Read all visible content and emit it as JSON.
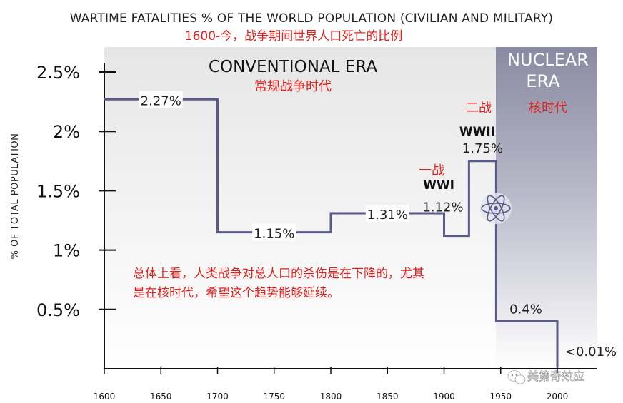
{
  "chart_data": {
    "type": "line",
    "title": "WARTIME FATALITIES % OF THE WORLD POPULATION (CIVILIAN AND MILITARY)",
    "subtitle_cn": "1600-今，战争期间世界人口死亡的比例",
    "ylabel": "% OF TOTAL POPULATION",
    "xlabel": "",
    "xlim": [
      1600,
      2000
    ],
    "ylim": [
      0,
      2.5
    ],
    "x_ticks": [
      "1600",
      "1650",
      "1700",
      "1750",
      "1800",
      "1850",
      "1900",
      "1950",
      "2000"
    ],
    "y_ticks": [
      "0.5%",
      "1%",
      "1.5%",
      "2%",
      "2.5%"
    ],
    "y_tick_values": [
      0.5,
      1,
      1.5,
      2,
      2.5
    ],
    "grid": false,
    "line_color": "#5a5a8a",
    "segments": [
      {
        "x_start": 1600,
        "x_end": 1700,
        "value": 2.27,
        "label": "2.27%"
      },
      {
        "x_start": 1700,
        "x_end": 1800,
        "value": 1.15,
        "label": "1.15%"
      },
      {
        "x_start": 1800,
        "x_end": 1900,
        "value": 1.31,
        "label": "1.31%"
      },
      {
        "x_start": 1900,
        "x_end": 1922,
        "value": 1.12,
        "label": "1.12%"
      },
      {
        "x_start": 1922,
        "x_end": 1946,
        "value": 1.75,
        "label": "1.75%"
      },
      {
        "x_start": 1946,
        "x_end": 2000,
        "value": 0.4,
        "label": "0.4%"
      },
      {
        "x_start": 2000,
        "x_end": 2000,
        "value": 0.01,
        "label": "<0.01%"
      }
    ],
    "eras": [
      {
        "name": "CONVENTIONAL ERA",
        "name_cn": "常规战争时代",
        "x_start": 1600,
        "x_end": 1946
      },
      {
        "name_line1": "NUCLEAR",
        "name_line2": "ERA",
        "name_cn": "核时代",
        "x_start": 1946,
        "x_end": 2000
      }
    ],
    "annotations": {
      "ww1": "WWI",
      "ww1_cn": "一战",
      "ww2": "WWII",
      "ww2_cn": "二战",
      "note_line1": "总体上看，人类战争对总人口的杀伤是在下降的，尤其",
      "note_line2": "是在核时代，希望这个趋势能够延续。"
    },
    "colors": {
      "conventional_bg": "#ededed",
      "nuclear_bg": "#8e8ea6",
      "annotation_red": "#e0201c"
    }
  },
  "watermark": {
    "text": "美第奇效应",
    "icon": "wechat-icon"
  }
}
